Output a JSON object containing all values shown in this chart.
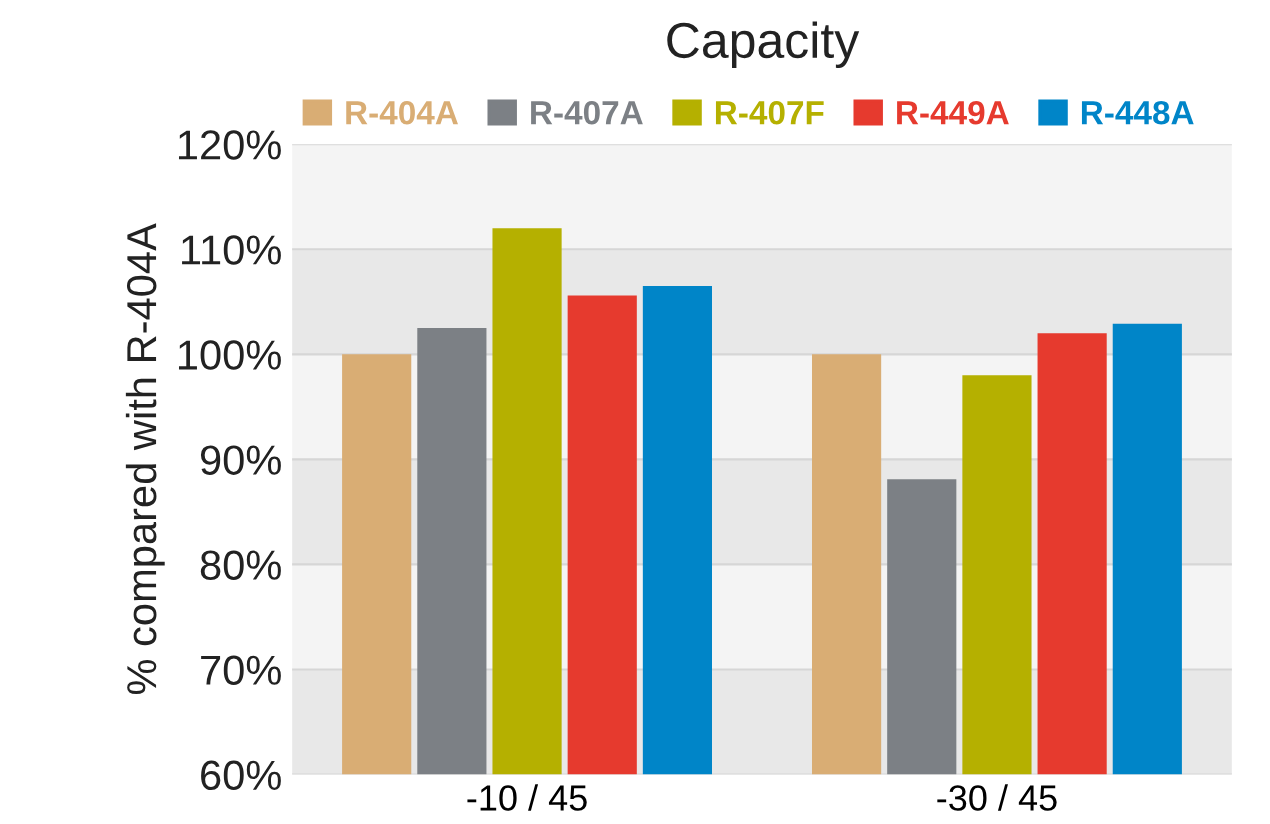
{
  "chart_data": {
    "type": "bar",
    "title": "Capacity",
    "ylabel": "% compared with R-404A",
    "categories": [
      "-10 / 45",
      "-30 / 45"
    ],
    "series": [
      {
        "name": "R-404A",
        "color": "#d9ad74",
        "values": [
          100,
          100
        ]
      },
      {
        "name": "R-407A",
        "color": "#7c8085",
        "values": [
          102.5,
          88.1
        ]
      },
      {
        "name": "R-407F",
        "color": "#b5b000",
        "values": [
          112,
          98
        ]
      },
      {
        "name": "R-449A",
        "color": "#e63a2e",
        "values": [
          105.6,
          102
        ]
      },
      {
        "name": "R-448A",
        "color": "#0085c8",
        "values": [
          106.5,
          102.9
        ]
      }
    ],
    "ylim": [
      60,
      120
    ],
    "yticks": [
      {
        "value": 60,
        "label": "60%"
      },
      {
        "value": 70,
        "label": "70%"
      },
      {
        "value": 80,
        "label": "80%"
      },
      {
        "value": 90,
        "label": "90%"
      },
      {
        "value": 100,
        "label": "100%"
      },
      {
        "value": 110,
        "label": "110%"
      },
      {
        "value": 120,
        "label": "120%"
      }
    ],
    "grid": "y",
    "legend": "top"
  }
}
